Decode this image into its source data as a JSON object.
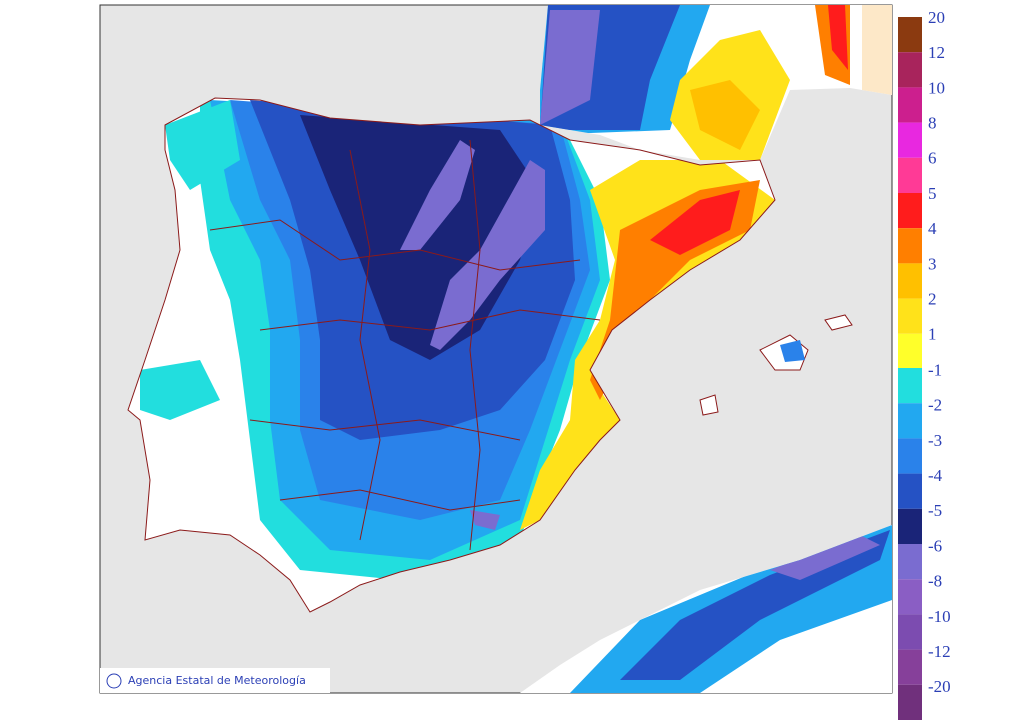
{
  "map": {
    "credit": "Agencia Estatal de Meteorología",
    "legend": {
      "items": [
        {
          "label": "20",
          "color": "#8b3a10"
        },
        {
          "label": "12",
          "color": "#a8245c"
        },
        {
          "label": "10",
          "color": "#cc1f8e"
        },
        {
          "label": "8",
          "color": "#e828e0"
        },
        {
          "label": "6",
          "color": "#ff3a96"
        },
        {
          "label": "5",
          "color": "#ff1c1c"
        },
        {
          "label": "4",
          "color": "#ff7f00"
        },
        {
          "label": "3",
          "color": "#ffc000"
        },
        {
          "label": "2",
          "color": "#ffe21a"
        },
        {
          "label": "1",
          "color": "#ffff2a"
        },
        {
          "label": "-1",
          "color": "#22dede"
        },
        {
          "label": "-2",
          "color": "#22a8f0"
        },
        {
          "label": "-3",
          "color": "#2a82ea"
        },
        {
          "label": "-4",
          "color": "#2552c4"
        },
        {
          "label": "-5",
          "color": "#1a2478"
        },
        {
          "label": "-6",
          "color": "#7a6cd0"
        },
        {
          "label": "-8",
          "color": "#8a5ec4"
        },
        {
          "label": "-10",
          "color": "#7c4cb0"
        },
        {
          "label": "-12",
          "color": "#86409a"
        },
        {
          "label": "-20",
          "color": "#70307c"
        }
      ]
    }
  }
}
